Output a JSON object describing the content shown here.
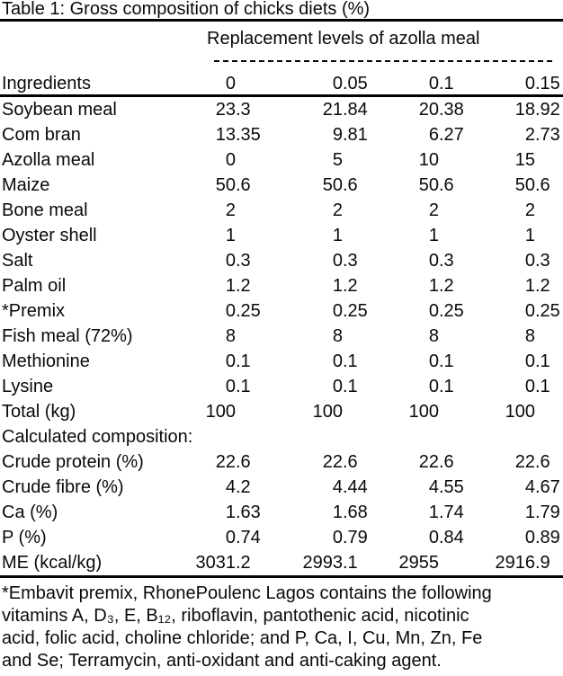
{
  "title": "Table 1: Gross composition of chicks diets (%)",
  "table": {
    "spanner": "Replacement levels of azolla meal",
    "ingredients_header": "Ingredients",
    "level_headers": [
      "0",
      "0.05",
      "0.1",
      "0.15"
    ],
    "rows": [
      {
        "label": "Soybean meal",
        "values": [
          "23.3",
          "21.84",
          "20.38",
          "18.92"
        ]
      },
      {
        "label": "Com bran",
        "values": [
          "13.35",
          "9.81",
          "6.27",
          "2.73"
        ]
      },
      {
        "label": "Azolla meal",
        "values": [
          "0",
          "5",
          "10",
          "15"
        ]
      },
      {
        "label": "Maize",
        "values": [
          "50.6",
          "50.6",
          "50.6",
          "50.6"
        ]
      },
      {
        "label": "Bone meal",
        "values": [
          "2",
          "2",
          "2",
          "2"
        ]
      },
      {
        "label": "Oyster shell",
        "values": [
          "1",
          "1",
          "1",
          "1"
        ]
      },
      {
        "label": "Salt",
        "values": [
          "0.3",
          "0.3",
          "0.3",
          "0.3"
        ]
      },
      {
        "label": "Palm oil",
        "values": [
          "1.2",
          "1.2",
          "1.2",
          "1.2"
        ]
      },
      {
        "label": "*Premix",
        "values": [
          "0.25",
          "0.25",
          "0.25",
          "0.25"
        ]
      },
      {
        "label": "Fish meal (72%)",
        "values": [
          "8",
          "8",
          "8",
          "8"
        ]
      },
      {
        "label": "Methionine",
        "values": [
          "0.1",
          "0.1",
          "0.1",
          "0.1"
        ]
      },
      {
        "label": "Lysine",
        "values": [
          "0.1",
          "0.1",
          "0.1",
          "0.1"
        ]
      },
      {
        "label": "Total (kg)",
        "values": [
          "100",
          "100",
          "100",
          "100"
        ]
      },
      {
        "label": "Calculated composition:",
        "values": []
      },
      {
        "label": "Crude protein (%)",
        "values": [
          "22.6",
          "22.6",
          "22.6",
          "22.6"
        ]
      },
      {
        "label": "Crude fibre (%)",
        "values": [
          "4.2",
          "4.44",
          "4.55",
          "4.67"
        ]
      },
      {
        "label": "Ca (%)",
        "values": [
          "1.63",
          "1.68",
          "1.74",
          "1.79"
        ]
      },
      {
        "label": "P (%)",
        "values": [
          "0.74",
          "0.79",
          "0.84",
          "0.89"
        ]
      },
      {
        "label": "ME (kcal/kg)",
        "values": [
          "3031.2",
          "2993.1",
          "2955",
          "2916.9"
        ]
      }
    ]
  },
  "footnote": {
    "lines": [
      "*Embavit premix, RhonePoulenc Lagos contains the following",
      "vitamins A, D₃, E, B₁₂, riboflavin, pantothenic acid, nicotinic",
      "acid, folic acid, choline chloride; and P, Ca, I, Cu, Mn, Zn, Fe",
      "and Se; Terramycin, anti-oxidant and anti-caking agent."
    ]
  }
}
